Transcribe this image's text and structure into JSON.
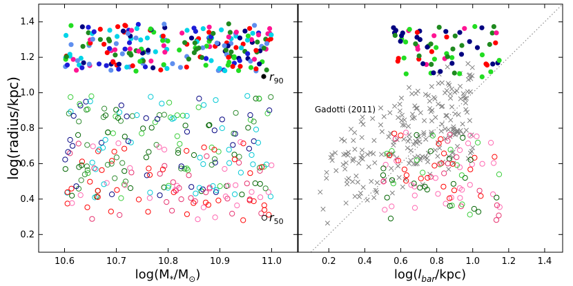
{
  "chart_data": [
    {
      "type": "scatter",
      "panel": "left",
      "xlabel": "log(M*/M⊙)",
      "xlabel_main": "log(M",
      "xlabel_sub": "*",
      "xlabel_mid": "/M",
      "xlabel_sun": "⊙",
      "xlabel_end": ")",
      "ylabel": "log(radius/kpc)",
      "xlim": [
        10.55,
        11.05
      ],
      "ylim": [
        0.1,
        1.5
      ],
      "xticks": [
        10.6,
        10.7,
        10.8,
        10.9,
        11.0
      ],
      "xtick_labels": [
        "10.6",
        "10.7",
        "10.8",
        "10.9",
        "11.0"
      ],
      "yticks": [
        0.2,
        0.4,
        0.6,
        0.8,
        1.0,
        1.2,
        1.4
      ],
      "ytick_labels": [
        "0.2",
        "0.4",
        "0.6",
        "0.8",
        "1.0",
        "1.2",
        "1.4"
      ],
      "legend_r90": "r",
      "legend_r90_sub": "90",
      "legend_r50": "r",
      "legend_r50_sub": "50",
      "series": [
        {
          "name": "r90 (filled)",
          "kind": "filled",
          "colors": [
            "#000080",
            "#2020d0",
            "#00d0e0",
            "#008000",
            "#00dd00",
            "#ff0000",
            "#ff1493",
            "#6495ed"
          ],
          "points_hint": "dense band log(radius) 1.10-1.40 across log(M*) 10.6-11.0"
        },
        {
          "name": "r50 (open)",
          "kind": "open",
          "colors": [
            "#000080",
            "#006400",
            "#32cd32",
            "#ff0000",
            "#e03070",
            "#00ced1",
            "#ff69b4",
            "#228b22"
          ],
          "points_hint": "scatter log(radius) 0.28-1.02 across log(M*) 10.6-11.0"
        }
      ]
    },
    {
      "type": "scatter",
      "panel": "right",
      "xlabel": "log(lbar/kpc)",
      "xlabel_main": "log(",
      "xlabel_it": "l",
      "xlabel_sub": "bar",
      "xlabel_end": "/kpc)",
      "xlim": [
        0.03,
        1.5
      ],
      "ylim": [
        0.1,
        1.5
      ],
      "xticks": [
        0.2,
        0.4,
        0.6,
        0.8,
        1.0,
        1.2,
        1.4
      ],
      "xtick_labels": [
        "0.2",
        "0.4",
        "0.6",
        "0.8",
        "1.0",
        "1.2",
        "1.4"
      ],
      "yticks": [
        0.2,
        0.4,
        0.6,
        0.8,
        1.0,
        1.2,
        1.4
      ],
      "annotation": "Gadotti (2011)",
      "one_to_one_line": true,
      "series": [
        {
          "name": "Gadotti (2011)",
          "kind": "cross",
          "color": "#808080"
        },
        {
          "name": "r90",
          "kind": "filled"
        },
        {
          "name": "r50",
          "kind": "open"
        }
      ]
    }
  ]
}
